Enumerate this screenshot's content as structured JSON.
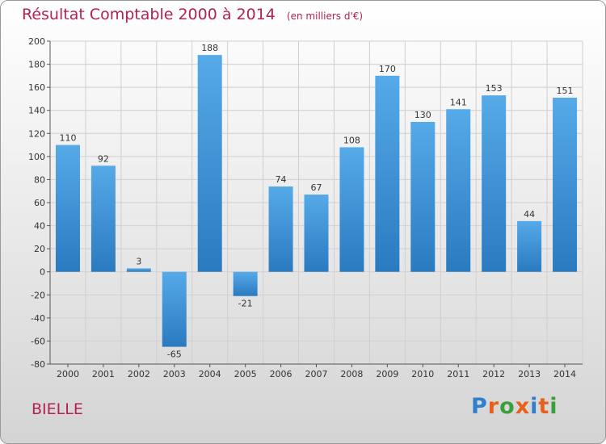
{
  "header": {
    "title": "Résultat Comptable 2000 à 2014",
    "unit": "(en milliers d'€)"
  },
  "commune": "BIELLE",
  "logo": {
    "text": "Proxiti",
    "letters": [
      "P",
      "r",
      "o",
      "x",
      "i",
      "t",
      "i"
    ],
    "colors": [
      "#2f7fcf",
      "#e8611a",
      "#3aa03a",
      "#e8611a",
      "#2f7fcf",
      "#e8611a",
      "#3aa03a"
    ]
  },
  "chart_data": {
    "type": "bar",
    "title": "Résultat Comptable 2000 à 2014",
    "ylabel": "en milliers d'€",
    "categories": [
      "2000",
      "2001",
      "2002",
      "2003",
      "2004",
      "2005",
      "2006",
      "2007",
      "2008",
      "2009",
      "2010",
      "2011",
      "2012",
      "2013",
      "2014"
    ],
    "values": [
      110,
      92,
      3,
      -65,
      188,
      -21,
      74,
      67,
      108,
      170,
      130,
      141,
      153,
      44,
      151
    ],
    "ylim": [
      -80,
      200
    ],
    "yticks": [
      -80,
      -60,
      -40,
      -20,
      0,
      20,
      40,
      60,
      80,
      100,
      120,
      140,
      160,
      180,
      200
    ],
    "grid": true,
    "bar_color_top": "#56aae8",
    "bar_color_bottom": "#2a7ac0"
  }
}
